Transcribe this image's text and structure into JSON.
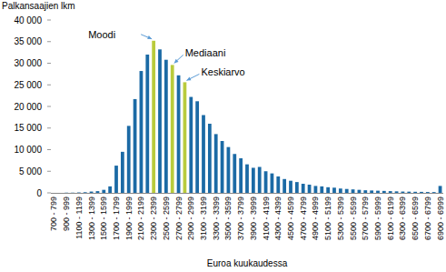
{
  "chart_data": {
    "type": "bar",
    "y_label": "Palkansaajien lkm",
    "x_label": "Euroa kuukaudessa",
    "categories": [
      "700 - 799",
      null,
      "900 - 999",
      null,
      "1100 - 1199",
      null,
      "1300 - 1399",
      null,
      "1500 - 1599",
      null,
      "1700 - 1799",
      null,
      "1900 - 1999",
      null,
      "2100 - 2199",
      null,
      "2300 - 2399",
      null,
      "2500 - 2599",
      null,
      "2700 - 2799",
      null,
      "2900 - 2999",
      null,
      "3100 - 3199",
      null,
      "3300 - 3399",
      null,
      "3500 - 3599",
      null,
      "3700 - 3799",
      null,
      "3900 - 3999",
      null,
      "4100 - 4199",
      null,
      "4300 - 4399",
      null,
      "4500 - 4599",
      null,
      "4700 - 4799",
      null,
      "4900 - 4999",
      null,
      "5100 - 5199",
      null,
      "5300 - 5399",
      null,
      "5500 - 5599",
      null,
      "5700 - 5799",
      null,
      "5900 - 5999",
      null,
      "6100 - 6199",
      null,
      "6300 - 6399",
      null,
      "6500 - 6599",
      null,
      "6700 - 6799",
      null,
      "6900 - 6999"
    ],
    "values": [
      0,
      0,
      50,
      50,
      100,
      150,
      300,
      400,
      700,
      1500,
      6300,
      9500,
      15500,
      21700,
      28200,
      32000,
      35200,
      33200,
      30800,
      29600,
      27200,
      25600,
      22200,
      21200,
      18000,
      16000,
      13600,
      12000,
      10600,
      9000,
      8000,
      6600,
      5800,
      6000,
      5000,
      4500,
      3800,
      3200,
      2800,
      2500,
      2100,
      1900,
      1600,
      1500,
      1300,
      1200,
      1000,
      900,
      800,
      700,
      600,
      550,
      500,
      450,
      400,
      350,
      300,
      280,
      250,
      230,
      200,
      180,
      1600
    ],
    "colors": [
      "#1b6aa5",
      "#1b6aa5",
      "#1b6aa5",
      "#1b6aa5",
      "#1b6aa5",
      "#1b6aa5",
      "#1b6aa5",
      "#1b6aa5",
      "#1b6aa5",
      "#1b6aa5",
      "#1b6aa5",
      "#1b6aa5",
      "#1b6aa5",
      "#1b6aa5",
      "#1b6aa5",
      "#1b6aa5",
      "#b9cb3c",
      "#1b6aa5",
      "#1b6aa5",
      "#b9cb3c",
      "#1b6aa5",
      "#b9cb3c",
      "#1b6aa5",
      "#1b6aa5",
      "#1b6aa5",
      "#1b6aa5",
      "#1b6aa5",
      "#1b6aa5",
      "#1b6aa5",
      "#1b6aa5",
      "#1b6aa5",
      "#1b6aa5",
      "#1b6aa5",
      "#1b6aa5",
      "#1b6aa5",
      "#1b6aa5",
      "#1b6aa5",
      "#1b6aa5",
      "#1b6aa5",
      "#1b6aa5",
      "#1b6aa5",
      "#1b6aa5",
      "#1b6aa5",
      "#1b6aa5",
      "#1b6aa5",
      "#1b6aa5",
      "#1b6aa5",
      "#1b6aa5",
      "#1b6aa5",
      "#1b6aa5",
      "#1b6aa5",
      "#1b6aa5",
      "#1b6aa5",
      "#1b6aa5",
      "#1b6aa5",
      "#1b6aa5",
      "#1b6aa5",
      "#1b6aa5",
      "#1b6aa5",
      "#1b6aa5",
      "#1b6aa5",
      "#1b6aa5",
      "#1b6aa5"
    ],
    "annotations": [
      {
        "text": "Moodi"
      },
      {
        "text": "Mediaani"
      },
      {
        "text": "Keskiarvo"
      }
    ],
    "ylim": [
      0,
      40000
    ],
    "yticks": [
      0,
      {
        "value": 5000,
        "label": "5 000"
      },
      {
        "value": 10000,
        "label": "10 000"
      },
      {
        "value": 15000,
        "label": "15 000"
      },
      {
        "value": 20000,
        "label": "20 000"
      },
      {
        "value": 25000,
        "label": "25 000"
      },
      {
        "value": 30000,
        "label": "30 000"
      },
      {
        "value": 35000,
        "label": "35 000"
      },
      {
        "value": 40000,
        "label": "40 000"
      }
    ],
    "grid": false
  }
}
